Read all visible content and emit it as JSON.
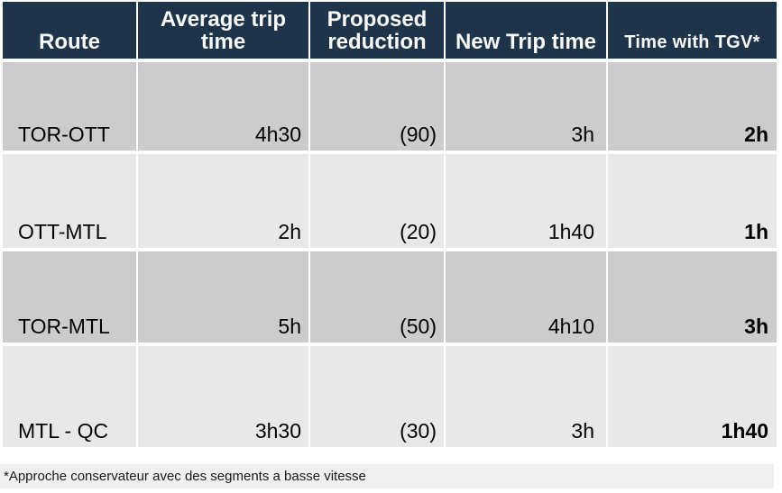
{
  "chart_data": {
    "type": "table",
    "columns": [
      "Route",
      "Average trip time",
      "Proposed reduction",
      "New Trip time",
      "Time with TGV*"
    ],
    "rows": [
      {
        "route": "TOR-OTT",
        "avg_trip_time": "4h30",
        "proposed_reduction": "(90)",
        "new_trip_time": "3h",
        "time_with_tgv": "2h"
      },
      {
        "route": "OTT-MTL",
        "avg_trip_time": "2h",
        "proposed_reduction": "(20)",
        "new_trip_time": "1h40",
        "time_with_tgv": "1h"
      },
      {
        "route": "TOR-MTL",
        "avg_trip_time": "5h",
        "proposed_reduction": "(50)",
        "new_trip_time": "4h10",
        "time_with_tgv": "3h"
      },
      {
        "route": "MTL - QC",
        "avg_trip_time": "3h30",
        "proposed_reduction": "(30)",
        "new_trip_time": "3h",
        "time_with_tgv": "1h40"
      }
    ],
    "footnote": "*Approche conservateur avec des segments a basse vitesse",
    "layout": "header row dark navy, data rows alternate dark/light gray, values bottom-aligned, last column bold"
  },
  "colors": {
    "header_bg": "#1F3449",
    "header_text": "#FAFAFA",
    "row_dark": "#CCCCCE",
    "row_light": "#E8E8EA",
    "footnote_bg": "#F0F0F1",
    "body_text": "#000000"
  }
}
